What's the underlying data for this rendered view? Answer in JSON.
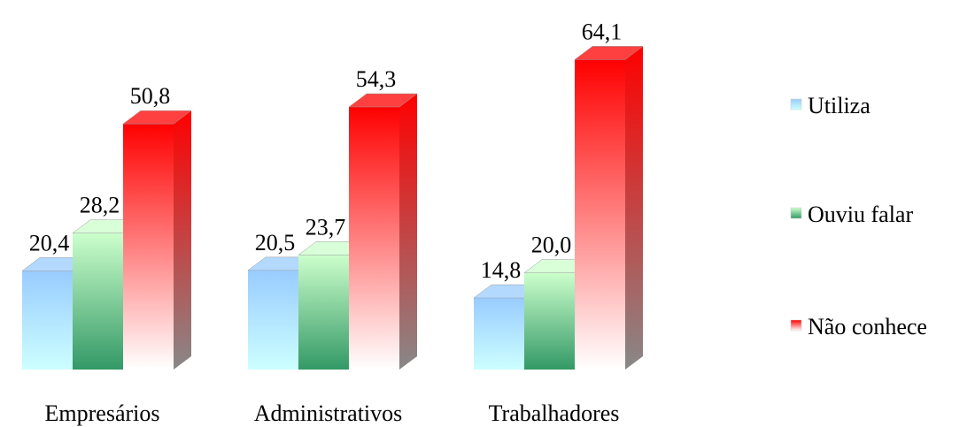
{
  "chart_data": {
    "type": "bar3d",
    "categories": [
      "Empresários",
      "Administrativos",
      "Trabalhadores"
    ],
    "series": [
      {
        "name": "Utiliza",
        "color": "#99ccff",
        "gradient": [
          "#99ccff",
          "#ccffff"
        ],
        "values": [
          20.4,
          20.5,
          14.8
        ],
        "value_labels": [
          "20,4",
          "20,5",
          "14,8"
        ]
      },
      {
        "name": "Ouviu falar",
        "color": "#339966",
        "gradient": [
          "#ccffcc",
          "#339966"
        ],
        "values": [
          28.2,
          23.7,
          20.0
        ],
        "value_labels": [
          "28,2",
          "23,7",
          "20,0"
        ]
      },
      {
        "name": "Não conhece",
        "color": "#ff0000",
        "gradient": [
          "#ff0000",
          "#ffffff"
        ],
        "values": [
          50.8,
          54.3,
          64.1
        ],
        "value_labels": [
          "50,8",
          "54,3",
          "64,1"
        ]
      }
    ],
    "legend": "right"
  }
}
